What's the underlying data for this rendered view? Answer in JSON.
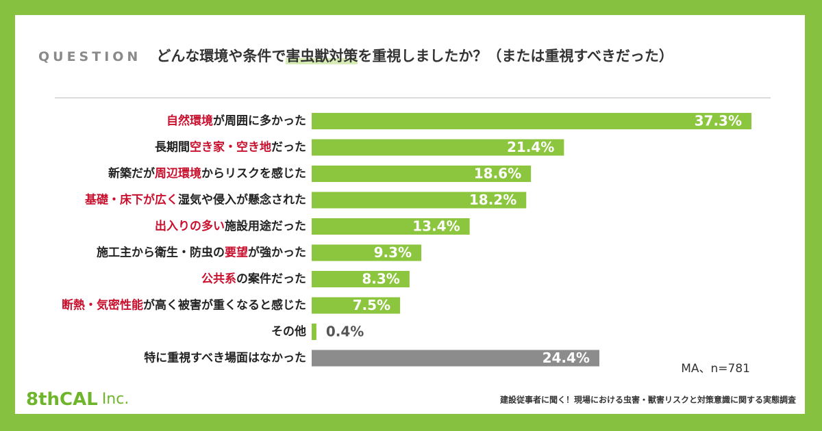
{
  "chart_data": {
    "type": "bar",
    "title_label": "QUESTION",
    "title": [
      "どんな環境や条件で",
      "害虫獣対策",
      "を重視しましたか？（または重視すべきだった）"
    ],
    "categories": [
      [
        {
          "text": "自然環境",
          "em": true
        },
        {
          "text": "が周囲に多かった"
        }
      ],
      [
        {
          "text": "長期間"
        },
        {
          "text": "空き家・空き地",
          "em": true
        },
        {
          "text": "だった"
        }
      ],
      [
        {
          "text": "新築だが"
        },
        {
          "text": "周辺環境",
          "em": true
        },
        {
          "text": "からリスクを感じた"
        }
      ],
      [
        {
          "text": "基礎・床下が広く",
          "em": true
        },
        {
          "text": "湿気や侵入が懸念された"
        }
      ],
      [
        {
          "text": "出入りの多い",
          "em": true
        },
        {
          "text": "施設用途だった"
        }
      ],
      [
        {
          "text": "施工主から衛生・防虫の"
        },
        {
          "text": "要望",
          "em": true
        },
        {
          "text": "が強かった"
        }
      ],
      [
        {
          "text": "公共系",
          "em": true
        },
        {
          "text": "の案件だった"
        }
      ],
      [
        {
          "text": "断熱・気密性能",
          "em": true
        },
        {
          "text": "が高く被害が重くなると感じた"
        }
      ],
      [
        {
          "text": "その他"
        }
      ],
      [
        {
          "text": "特に重視すべき場面はなかった"
        }
      ]
    ],
    "values": [
      37.3,
      21.4,
      18.6,
      18.2,
      13.4,
      9.3,
      8.3,
      7.5,
      0.4,
      24.4
    ],
    "value_labels": [
      "37.3%",
      "21.4%",
      "18.6%",
      "18.2%",
      "13.4%",
      "9.3%",
      "8.3%",
      "7.5%",
      "0.4%",
      "24.4%"
    ],
    "colors": [
      "#8cc63f",
      "#8cc63f",
      "#8cc63f",
      "#8cc63f",
      "#8cc63f",
      "#8cc63f",
      "#8cc63f",
      "#8cc63f",
      "#8cc63f",
      "#8c8c8c"
    ],
    "highlight_color": "#c8102e",
    "note": "MA、n=781",
    "logo": [
      "8thCAL",
      "Inc."
    ],
    "source": "建設従事者に聞く！現場における虫害・獣害リスクと対策意識に関する実態調査"
  }
}
